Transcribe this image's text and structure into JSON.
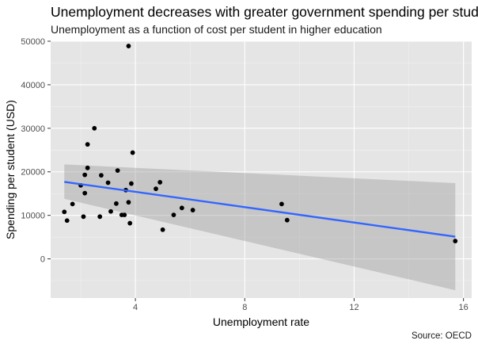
{
  "chart_data": {
    "type": "scatter",
    "title": "Unemployment decreases with greater government spending per student",
    "subtitle": "Unemployment as a function of cost per student in higher education",
    "caption": "Source: OECD",
    "xlabel": "Unemployment rate",
    "ylabel": "Spending per student (USD)",
    "xlim": [
      0.9,
      16.3
    ],
    "ylim": [
      -9000,
      50000
    ],
    "x_ticks": [
      4,
      8,
      12,
      16
    ],
    "x_tick_labels": [
      "4",
      "8",
      "12",
      "16"
    ],
    "y_ticks": [
      0,
      10000,
      20000,
      30000,
      40000,
      50000
    ],
    "y_tick_labels": [
      "0",
      "10000",
      "20000",
      "30000",
      "40000",
      "50000"
    ],
    "grid": true,
    "background_color": "#e5e5e5",
    "point_color": "#000000",
    "trend_color": "#3366ff",
    "band_color": "#999999",
    "points": [
      {
        "x": 1.4,
        "y": 10800
      },
      {
        "x": 1.5,
        "y": 8800
      },
      {
        "x": 1.7,
        "y": 12600
      },
      {
        "x": 2.0,
        "y": 16900
      },
      {
        "x": 2.1,
        "y": 9700
      },
      {
        "x": 2.15,
        "y": 15100
      },
      {
        "x": 2.15,
        "y": 19300
      },
      {
        "x": 2.25,
        "y": 20900
      },
      {
        "x": 2.25,
        "y": 26300
      },
      {
        "x": 2.5,
        "y": 30000
      },
      {
        "x": 2.7,
        "y": 9700
      },
      {
        "x": 2.75,
        "y": 19200
      },
      {
        "x": 3.0,
        "y": 17500
      },
      {
        "x": 3.1,
        "y": 10900
      },
      {
        "x": 3.3,
        "y": 12700
      },
      {
        "x": 3.35,
        "y": 20300
      },
      {
        "x": 3.5,
        "y": 10100
      },
      {
        "x": 3.6,
        "y": 10100
      },
      {
        "x": 3.65,
        "y": 15800
      },
      {
        "x": 3.75,
        "y": 13000
      },
      {
        "x": 3.75,
        "y": 48900
      },
      {
        "x": 3.8,
        "y": 8200
      },
      {
        "x": 3.85,
        "y": 17300
      },
      {
        "x": 3.9,
        "y": 24400
      },
      {
        "x": 4.75,
        "y": 16100
      },
      {
        "x": 4.9,
        "y": 17600
      },
      {
        "x": 5.0,
        "y": 6700
      },
      {
        "x": 5.4,
        "y": 10100
      },
      {
        "x": 5.7,
        "y": 11700
      },
      {
        "x": 6.1,
        "y": 11200
      },
      {
        "x": 9.35,
        "y": 12600
      },
      {
        "x": 9.55,
        "y": 8900
      },
      {
        "x": 15.7,
        "y": 4100
      }
    ],
    "trend": {
      "method": "linear",
      "x": [
        1.4,
        15.7
      ],
      "y": [
        17700,
        5100
      ],
      "band_upper": [
        21700,
        17400
      ],
      "band_lower": [
        13800,
        -7200
      ]
    }
  }
}
